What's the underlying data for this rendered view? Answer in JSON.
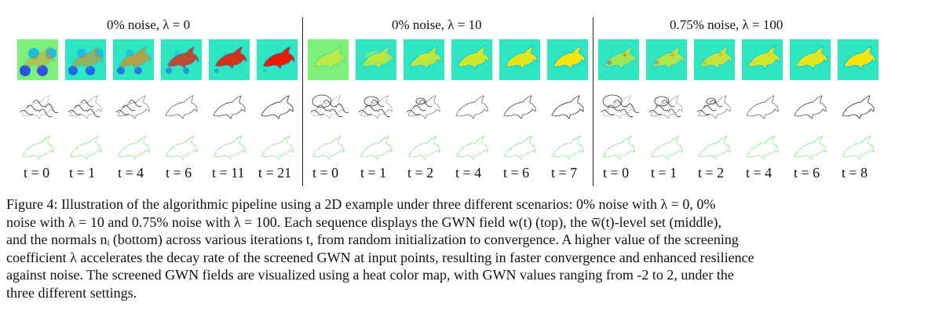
{
  "figure": {
    "groups": [
      {
        "title": "0% noise, λ = 0",
        "t_labels": [
          "t = 0",
          "t = 1",
          "t = 4",
          "t = 6",
          "t = 11",
          "t = 21"
        ]
      },
      {
        "title": "0% noise, λ = 10",
        "t_labels": [
          "t = 0",
          "t = 1",
          "t = 2",
          "t = 4",
          "t = 6",
          "t = 7"
        ]
      },
      {
        "title": "0.75% noise, λ = 100",
        "t_labels": [
          "t = 0",
          "t = 1",
          "t = 2",
          "t = 4",
          "t = 6",
          "t = 8"
        ]
      }
    ],
    "colormap": [
      "#1a2dff",
      "#00b4ff",
      "#2ee6c0",
      "#7df07a",
      "#f5e60a",
      "#ff7a00",
      "#e81a00"
    ]
  },
  "caption": {
    "lines": [
      "Figure 4: Illustration of the algorithmic pipeline using a 2D example under three different scenarios: 0% noise with λ = 0, 0%",
      "noise with λ = 10 and 0.75% noise with λ = 100. Each sequence displays the GWN field w(t) (top), the w̅(t)-level set (middle),",
      "and the normals nᵢ (bottom) across various iterations t, from random initialization to convergence. A higher value of the screening",
      "coefficient λ accelerates the decay rate of the screened GWN at input points, resulting in faster convergence and enhanced resilience",
      "against noise. The screened GWN fields are visualized using a heat color map, with GWN values ranging from -2 to 2, under the",
      "three different settings."
    ]
  }
}
